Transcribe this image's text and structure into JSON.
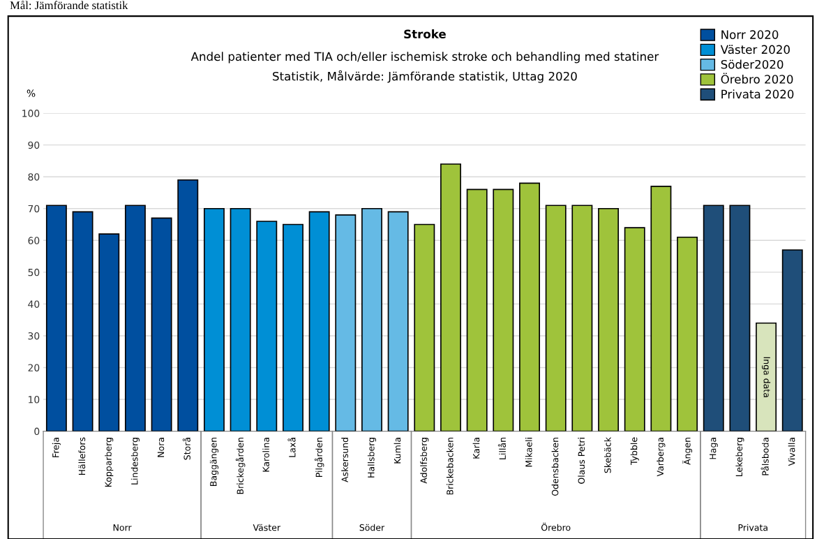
{
  "chart_data": {
    "type": "bar",
    "title": "Stroke",
    "subtitle": "Andel patienter med TIA och/eller ischemisk stroke och behandling med statiner\nStatistik, Målvärde: Jämförande statistik, Uttag 2020",
    "ylabel": "%",
    "categories": [
      "Freja",
      "Hällefors",
      "Kopparberg",
      "Lindesberg",
      "Nora",
      "Storå",
      "Baggängen",
      "Brickegården",
      "Karolina",
      "Laxå",
      "Pilgården",
      "Askersund",
      "Hallsberg",
      "Kumla",
      "Adolfsberg",
      "Brickebacken",
      "Karla",
      "Lillån",
      "Mikaeli",
      "Odensbacken",
      "Olaus Petri",
      "Skebäck",
      "Tybble",
      "Varberga",
      "Ängen",
      "Haga",
      "Lekeberg",
      "Pålsboda",
      "Vivalla"
    ],
    "series": [
      {
        "name": "Norr 2020",
        "color": "#004f9f",
        "values": [
          71,
          69,
          62,
          71,
          67,
          79,
          null,
          null,
          null,
          null,
          null,
          null,
          null,
          null,
          null,
          null,
          null,
          null,
          null,
          null,
          null,
          null,
          null,
          null,
          null,
          null,
          null,
          null,
          null
        ]
      },
      {
        "name": "Väster 2020",
        "color": "#008fd5",
        "values": [
          null,
          null,
          null,
          null,
          null,
          null,
          70,
          70,
          66,
          65,
          69,
          null,
          null,
          null,
          null,
          null,
          null,
          null,
          null,
          null,
          null,
          null,
          null,
          null,
          null,
          null,
          null,
          null,
          null
        ]
      },
      {
        "name": "Söder2020",
        "color": "#65bae5",
        "values": [
          null,
          null,
          null,
          null,
          null,
          null,
          null,
          null,
          null,
          null,
          null,
          68,
          70,
          69,
          null,
          null,
          null,
          null,
          null,
          null,
          null,
          null,
          null,
          null,
          null,
          null,
          null,
          null,
          null
        ]
      },
      {
        "name": "Örebro 2020",
        "color": "#9fc33b",
        "values": [
          null,
          null,
          null,
          null,
          null,
          null,
          null,
          null,
          null,
          null,
          null,
          null,
          null,
          null,
          65,
          84,
          76,
          76,
          78,
          71,
          71,
          70,
          64,
          77,
          61,
          null,
          null,
          null,
          null
        ]
      },
      {
        "name": "Privata 2020",
        "color": "#1f4e79",
        "values": [
          null,
          null,
          null,
          null,
          null,
          null,
          null,
          null,
          null,
          null,
          null,
          null,
          null,
          null,
          null,
          null,
          null,
          null,
          null,
          null,
          null,
          null,
          null,
          null,
          null,
          71,
          71,
          null,
          57
        ]
      },
      {
        "color": "#d8e4bc",
        "values": [
          null,
          null,
          null,
          null,
          null,
          null,
          null,
          null,
          null,
          null,
          null,
          null,
          null,
          null,
          null,
          null,
          null,
          null,
          null,
          null,
          null,
          null,
          null,
          null,
          null,
          null,
          null,
          34,
          null
        ]
      }
    ],
    "ylim": [
      0,
      100
    ],
    "yticks": [
      0,
      10,
      20,
      30,
      40,
      50,
      60,
      70,
      80,
      90,
      100
    ],
    "grid": "y",
    "legend": "top right",
    "annotations": [
      "Mål: Jämförande statistik",
      "Norr",
      "Väster",
      "Söder",
      "Örebro",
      "Privata",
      "Inga data"
    ]
  }
}
